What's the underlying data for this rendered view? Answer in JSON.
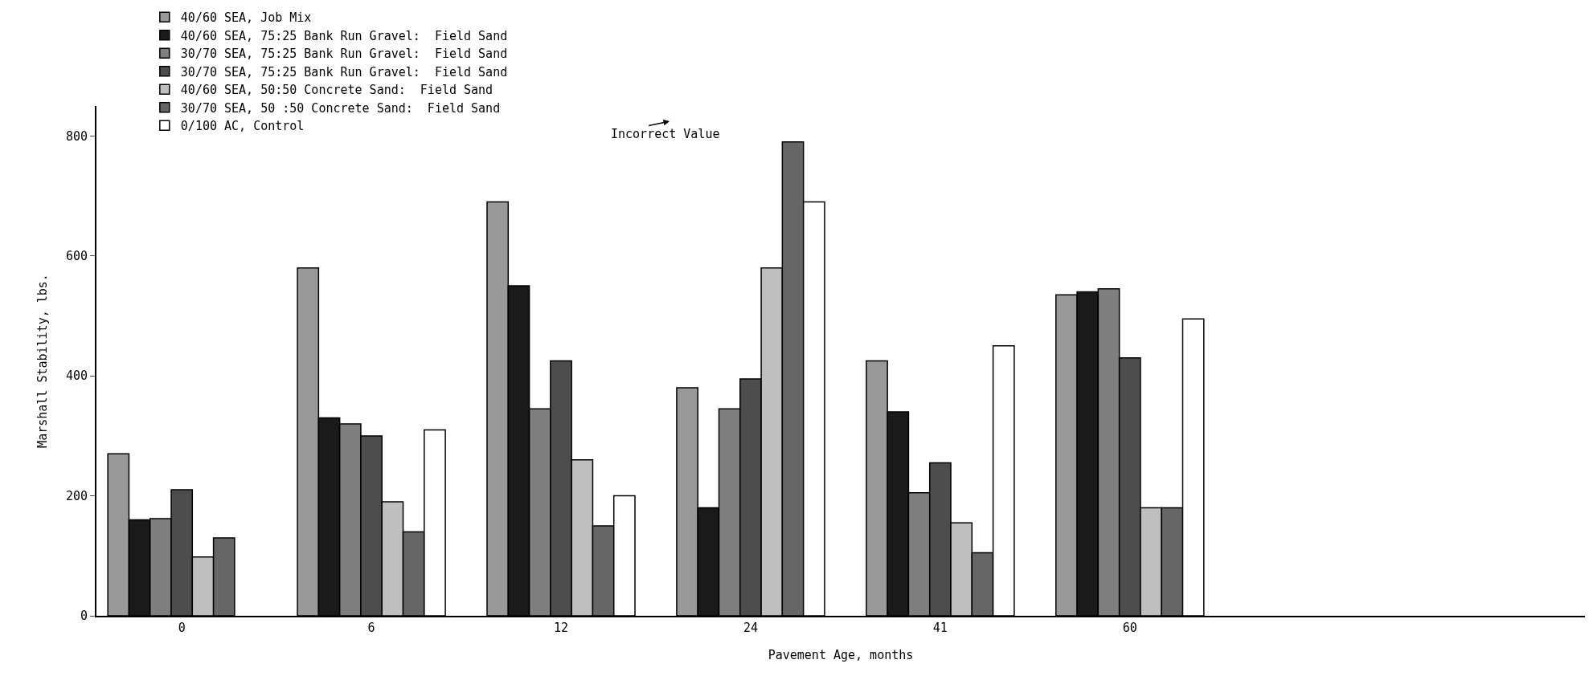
{
  "chart_data": {
    "type": "bar",
    "xlabel": "Pavement Age, months",
    "ylabel": "Marshall Stability, lbs.",
    "categories": [
      "0",
      "6",
      "12",
      "24",
      "41",
      "60"
    ],
    "series": [
      {
        "name": "40/60 SEA, Job Mix",
        "color": "#999999",
        "values": [
          270,
          580,
          690,
          380,
          425,
          535
        ]
      },
      {
        "name": "40/60 SEA, 75:25 Bank Run Gravel:  Field Sand",
        "color": "#1a1a1a",
        "values": [
          160,
          330,
          550,
          180,
          340,
          540
        ]
      },
      {
        "name": "30/70 SEA, 75:25 Bank Run Gravel:  Field Sand",
        "color": "#7f7f7f",
        "values": [
          162,
          320,
          345,
          345,
          205,
          545
        ]
      },
      {
        "name": "30/70 SEA, 75:25 Bank Run Gravel:  Field Sand",
        "color": "#4d4d4d",
        "values": [
          210,
          300,
          425,
          395,
          255,
          430
        ]
      },
      {
        "name": "40/60 SEA, 50:50 Concrete Sand:  Field Sand",
        "color": "#bfbfbf",
        "values": [
          98,
          190,
          260,
          580,
          155,
          180
        ]
      },
      {
        "name": "30/70 SEA, 50 :50 Concrete Sand:  Field Sand",
        "color": "#666666",
        "values": [
          130,
          140,
          150,
          790,
          105,
          180
        ]
      },
      {
        "name": "0/100 AC, Control",
        "color": "#ffffff",
        "values": [
          null,
          310,
          200,
          690,
          450,
          495
        ]
      }
    ],
    "ylim": [
      0,
      850
    ],
    "yticks": [
      0,
      200,
      400,
      600,
      800
    ],
    "grid": false,
    "legend": "top left",
    "annotations": [
      "Incorrect Value"
    ]
  }
}
